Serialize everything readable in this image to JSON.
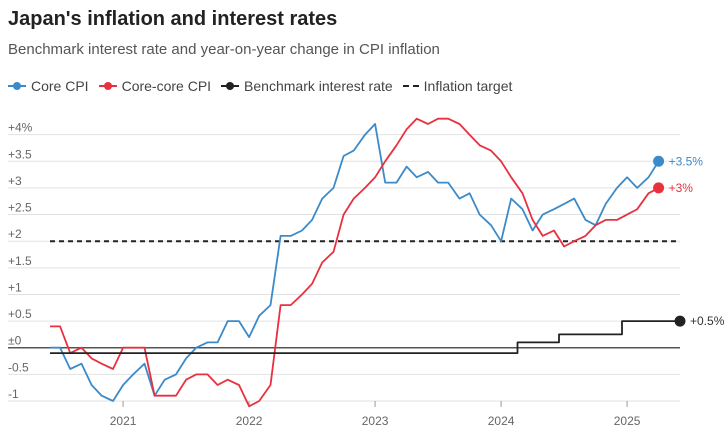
{
  "header": {
    "title": "Japan's inflation and interest rates",
    "subtitle": "Benchmark interest rate and year-on-year change in CPI inflation"
  },
  "legend": [
    {
      "label": "Core CPI",
      "color": "#3b8ac9",
      "style": "line-dot"
    },
    {
      "label": "Core-core CPI",
      "color": "#e8313f",
      "style": "line-dot"
    },
    {
      "label": "Benchmark interest rate",
      "color": "#222222",
      "style": "line-dot"
    },
    {
      "label": "Inflation target",
      "color": "#222222",
      "style": "dashed"
    }
  ],
  "chart_data": {
    "type": "line",
    "title": "Japan's inflation and interest rates",
    "xlabel": "",
    "ylabel": "",
    "ylim": [
      -1,
      4.2
    ],
    "xlim": [
      2020.42,
      2025.42
    ],
    "grid": true,
    "yticks": [
      {
        "value": 4,
        "label": "+4%"
      },
      {
        "value": 3.5,
        "label": "+3.5"
      },
      {
        "value": 3,
        "label": "+3"
      },
      {
        "value": 2.5,
        "label": "+2.5"
      },
      {
        "value": 2,
        "label": "+2"
      },
      {
        "value": 1.5,
        "label": "+1.5"
      },
      {
        "value": 1,
        "label": "+1"
      },
      {
        "value": 0.5,
        "label": "+0.5"
      },
      {
        "value": 0,
        "label": "±0"
      },
      {
        "value": -0.5,
        "label": "-0.5"
      },
      {
        "value": -1,
        "label": "-1"
      }
    ],
    "xticks": [
      {
        "value": 2021.0,
        "label": "2021"
      },
      {
        "value": 2022.0,
        "label": "2022"
      },
      {
        "value": 2023.0,
        "label": "2023"
      },
      {
        "value": 2024.0,
        "label": "2024"
      },
      {
        "value": 2025.0,
        "label": "2025"
      }
    ],
    "series": [
      {
        "name": "Core CPI",
        "color": "#3b8ac9",
        "end_label": "+3.5%",
        "x": [
          2020.42,
          2020.5,
          2020.58,
          2020.67,
          2020.75,
          2020.83,
          2020.92,
          2021.0,
          2021.08,
          2021.17,
          2021.25,
          2021.33,
          2021.42,
          2021.5,
          2021.58,
          2021.67,
          2021.75,
          2021.83,
          2021.92,
          2022.0,
          2022.08,
          2022.17,
          2022.25,
          2022.33,
          2022.42,
          2022.5,
          2022.58,
          2022.67,
          2022.75,
          2022.83,
          2022.92,
          2023.0,
          2023.08,
          2023.17,
          2023.25,
          2023.33,
          2023.42,
          2023.5,
          2023.58,
          2023.67,
          2023.75,
          2023.83,
          2023.92,
          2024.0,
          2024.08,
          2024.17,
          2024.25,
          2024.33,
          2024.42,
          2024.5,
          2024.58,
          2024.67,
          2024.75,
          2024.83,
          2024.92,
          2025.0,
          2025.08,
          2025.17,
          2025.25
        ],
        "values": [
          0.0,
          0.0,
          -0.4,
          -0.3,
          -0.7,
          -0.9,
          -1.0,
          -0.7,
          -0.5,
          -0.3,
          -0.9,
          -0.6,
          -0.5,
          -0.2,
          0.0,
          0.1,
          0.1,
          0.5,
          0.5,
          0.2,
          0.6,
          0.8,
          2.1,
          2.1,
          2.2,
          2.4,
          2.8,
          3.0,
          3.6,
          3.7,
          4.0,
          4.2,
          3.1,
          3.1,
          3.4,
          3.2,
          3.3,
          3.1,
          3.1,
          2.8,
          2.9,
          2.5,
          2.3,
          2.0,
          2.8,
          2.6,
          2.2,
          2.5,
          2.6,
          2.7,
          2.8,
          2.4,
          2.3,
          2.7,
          3.0,
          3.2,
          3.0,
          3.2,
          3.5
        ]
      },
      {
        "name": "Core-core CPI",
        "color": "#e8313f",
        "end_label": "+3%",
        "x": [
          2020.42,
          2020.5,
          2020.58,
          2020.67,
          2020.75,
          2020.83,
          2020.92,
          2021.0,
          2021.08,
          2021.17,
          2021.25,
          2021.33,
          2021.42,
          2021.5,
          2021.58,
          2021.67,
          2021.75,
          2021.83,
          2021.92,
          2022.0,
          2022.08,
          2022.17,
          2022.25,
          2022.33,
          2022.42,
          2022.5,
          2022.58,
          2022.67,
          2022.75,
          2022.83,
          2022.92,
          2023.0,
          2023.08,
          2023.17,
          2023.25,
          2023.33,
          2023.42,
          2023.5,
          2023.58,
          2023.67,
          2023.75,
          2023.83,
          2023.92,
          2024.0,
          2024.08,
          2024.17,
          2024.25,
          2024.33,
          2024.42,
          2024.5,
          2024.58,
          2024.67,
          2024.75,
          2024.83,
          2024.92,
          2025.0,
          2025.08,
          2025.17,
          2025.25
        ],
        "values": [
          0.4,
          0.4,
          -0.1,
          0.0,
          -0.2,
          -0.3,
          -0.4,
          0.0,
          0.0,
          0.0,
          -0.9,
          -0.9,
          -0.9,
          -0.6,
          -0.5,
          -0.5,
          -0.7,
          -0.6,
          -0.7,
          -1.1,
          -1.0,
          -0.7,
          0.8,
          0.8,
          1.0,
          1.2,
          1.6,
          1.8,
          2.5,
          2.8,
          3.0,
          3.2,
          3.5,
          3.8,
          4.1,
          4.3,
          4.2,
          4.3,
          4.3,
          4.2,
          4.0,
          3.8,
          3.7,
          3.5,
          3.2,
          2.9,
          2.4,
          2.1,
          2.2,
          1.9,
          2.0,
          2.1,
          2.3,
          2.4,
          2.4,
          2.5,
          2.6,
          2.9,
          3.0
        ]
      },
      {
        "name": "Benchmark interest rate",
        "color": "#222222",
        "end_label": "+0.5%",
        "x": [
          2020.42,
          2024.13,
          2024.13,
          2024.46,
          2024.46,
          2024.96,
          2024.96,
          2025.42
        ],
        "values": [
          -0.1,
          -0.1,
          0.1,
          0.1,
          0.25,
          0.25,
          0.5,
          0.5
        ]
      },
      {
        "name": "Inflation target",
        "color": "#222222",
        "x": [
          2020.42,
          2025.42
        ],
        "values": [
          2,
          2
        ]
      }
    ]
  }
}
